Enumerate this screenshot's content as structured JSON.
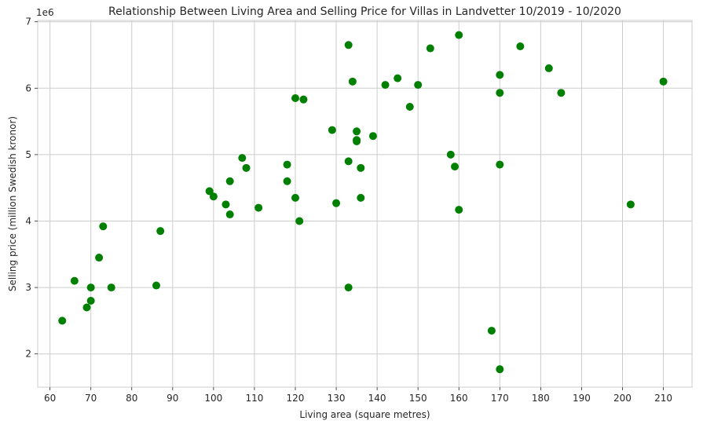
{
  "chart_data": {
    "type": "scatter",
    "title": "Relationship Between Living Area and Selling Price for Villas in Landvetter 10/2019 - 10/2020",
    "xlabel": "Living area (square metres)",
    "ylabel": "Selling price (million Swedish kronor)",
    "y_offset_label": "1e6",
    "xlim": [
      57,
      217
    ],
    "ylim": [
      1.5,
      7.02
    ],
    "x_ticks": [
      60,
      70,
      80,
      90,
      100,
      110,
      120,
      130,
      140,
      150,
      160,
      170,
      180,
      190,
      200,
      210
    ],
    "y_ticks": [
      2,
      3,
      4,
      5,
      6,
      7
    ],
    "grid": true,
    "marker_color": "#008000",
    "grid_color": "#cccccc",
    "series": [
      {
        "points": [
          [
            63,
            2.5
          ],
          [
            66,
            3.1
          ],
          [
            69,
            2.7
          ],
          [
            70,
            2.8
          ],
          [
            70,
            3.0
          ],
          [
            72,
            3.45
          ],
          [
            73,
            3.92
          ],
          [
            75,
            3.0
          ],
          [
            86,
            3.03
          ],
          [
            87,
            3.85
          ],
          [
            99,
            4.45
          ],
          [
            100,
            4.37
          ],
          [
            103,
            4.25
          ],
          [
            104,
            4.1
          ],
          [
            104,
            4.6
          ],
          [
            107,
            4.95
          ],
          [
            108,
            4.8
          ],
          [
            111,
            4.2
          ],
          [
            118,
            4.85
          ],
          [
            118,
            4.6
          ],
          [
            120,
            4.35
          ],
          [
            120,
            5.85
          ],
          [
            121,
            4.0
          ],
          [
            122,
            5.83
          ],
          [
            129,
            5.37
          ],
          [
            130,
            4.27
          ],
          [
            133,
            4.9
          ],
          [
            133,
            6.65
          ],
          [
            133,
            3.0
          ],
          [
            134,
            6.1
          ],
          [
            135,
            5.35
          ],
          [
            135,
            5.22
          ],
          [
            135,
            5.2
          ],
          [
            136,
            4.8
          ],
          [
            136,
            4.35
          ],
          [
            139,
            5.28
          ],
          [
            142,
            6.05
          ],
          [
            145,
            6.15
          ],
          [
            148,
            5.72
          ],
          [
            150,
            6.05
          ],
          [
            153,
            6.6
          ],
          [
            158,
            5.0
          ],
          [
            159,
            4.82
          ],
          [
            160,
            6.8
          ],
          [
            160,
            4.17
          ],
          [
            168,
            2.35
          ],
          [
            170,
            6.2
          ],
          [
            170,
            5.93
          ],
          [
            170,
            4.85
          ],
          [
            170,
            1.77
          ],
          [
            175,
            6.63
          ],
          [
            182,
            6.3
          ],
          [
            185,
            5.93
          ],
          [
            202,
            4.25
          ],
          [
            210,
            6.1
          ]
        ]
      }
    ]
  }
}
